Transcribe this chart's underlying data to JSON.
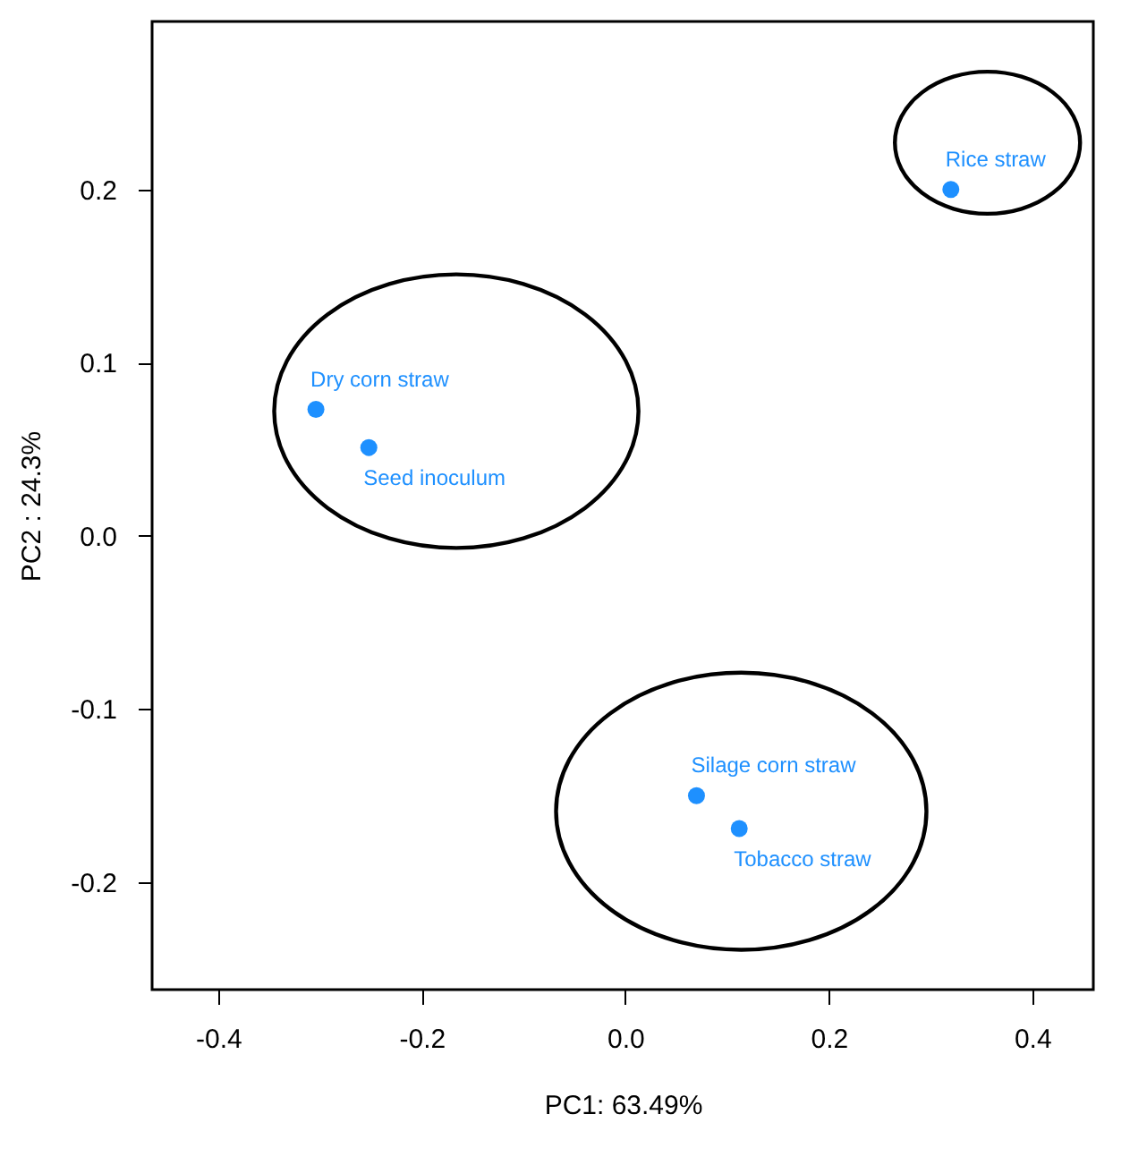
{
  "chart_data": {
    "type": "scatter",
    "xlabel": "PC1: 63.49%",
    "ylabel": "PC2 :  24.3%",
    "xlim": [
      -0.465,
      0.46
    ],
    "ylim": [
      -0.262,
      0.297
    ],
    "xticks": [
      -0.4,
      -0.2,
      {
        "value": 0,
        "label": "0.0"
      },
      0.2,
      0.4
    ],
    "yticks": [
      -0.2,
      -0.1,
      {
        "value": 0,
        "label": "0.0"
      },
      0.1,
      0.2
    ],
    "grid": false,
    "marker": "circle",
    "series": [
      {
        "color": "#1e90ff",
        "x": [
          0.32,
          -0.304,
          -0.252,
          0.07,
          0.112
        ],
        "values": [
          0.2,
          0.073,
          0.051,
          -0.15,
          -0.169
        ],
        "value_labels": [
          "Rice straw",
          "Dry corn straw",
          "Seed inoculum",
          "Silage corn straw",
          "Tobacco straw"
        ]
      }
    ]
  }
}
